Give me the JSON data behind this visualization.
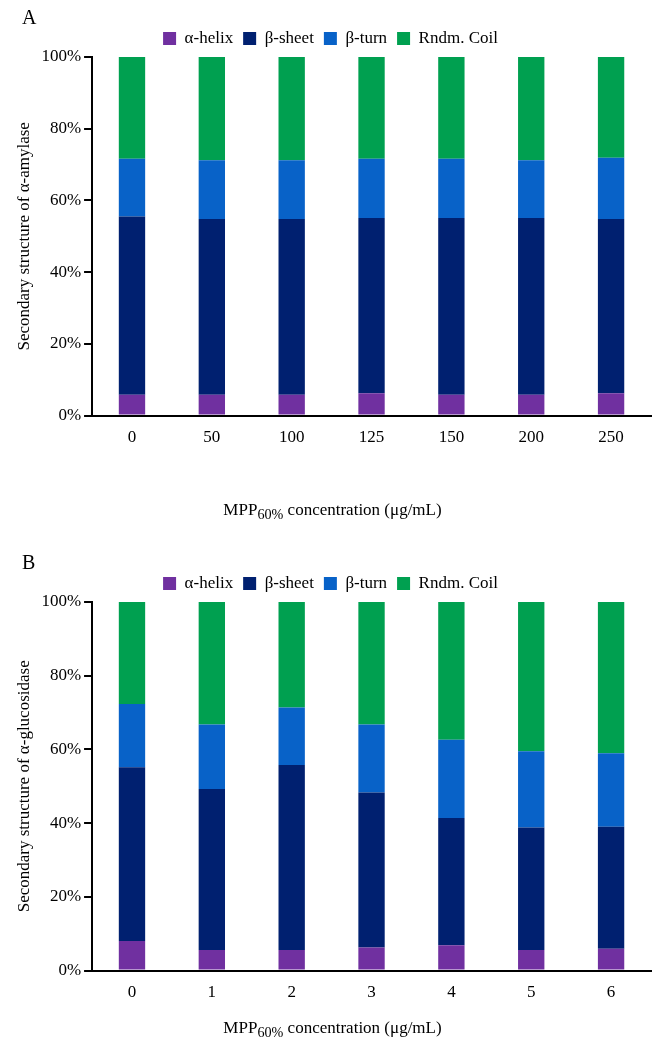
{
  "chart_data": [
    {
      "type": "bar",
      "title": "A",
      "xlabel": "MPP$_{60%}$ concentration (μg/mL)",
      "ylabel": "Secondary structure of α-amylase",
      "categories": [
        "0",
        "50",
        "100",
        "125",
        "150",
        "200",
        "250"
      ],
      "stacked": true,
      "legend": "top",
      "ylim": [
        0,
        100
      ],
      "yticks": [
        {
          "value": 0,
          "label": "0%"
        },
        {
          "value": 20,
          "label": "20%"
        },
        {
          "value": 40,
          "label": "40%"
        },
        {
          "value": 60,
          "label": "60%"
        },
        {
          "value": 80,
          "label": "80%"
        },
        {
          "value": 100,
          "label": "100%"
        }
      ],
      "grid": false,
      "series": [
        {
          "name": "α-helix",
          "color": "#7030a0",
          "values": [
            5.8,
            5.8,
            5.8,
            6.2,
            5.8,
            5.8,
            6.2
          ]
        },
        {
          "name": "β-sheet",
          "color": "#002070",
          "values": [
            49.7,
            49.0,
            49.0,
            48.9,
            49.3,
            49.3,
            48.6
          ]
        },
        {
          "name": "β-turn",
          "color": "#0862c8",
          "values": [
            16.1,
            16.4,
            16.4,
            16.5,
            16.5,
            16.1,
            17.1
          ]
        },
        {
          "name": "Rndm. Coil",
          "color": "#00a050",
          "values": [
            28.4,
            28.8,
            28.8,
            28.4,
            28.4,
            28.8,
            28.1
          ]
        }
      ]
    },
    {
      "type": "bar",
      "title": "B",
      "xlabel": "MPP$_{60%}$ concentration (μg/mL)",
      "ylabel": "Secondary structure of α-glucosidase",
      "categories": [
        "0",
        "1",
        "2",
        "3",
        "4",
        "5",
        "6"
      ],
      "stacked": true,
      "legend": "top",
      "ylim": [
        0,
        100
      ],
      "yticks": [
        {
          "value": 0,
          "label": "0%"
        },
        {
          "value": 20,
          "label": "20%"
        },
        {
          "value": 40,
          "label": "40%"
        },
        {
          "value": 60,
          "label": "60%"
        },
        {
          "value": 80,
          "label": "80%"
        },
        {
          "value": 100,
          "label": "100%"
        }
      ],
      "grid": false,
      "series": [
        {
          "name": "α-helix",
          "color": "#7030a0",
          "values": [
            8.0,
            5.6,
            5.6,
            6.3,
            6.9,
            5.6,
            5.9
          ]
        },
        {
          "name": "β-sheet",
          "color": "#002070",
          "values": [
            47.2,
            43.7,
            50.2,
            42.0,
            34.5,
            33.2,
            33.1
          ]
        },
        {
          "name": "β-turn",
          "color": "#0862c8",
          "values": [
            17.1,
            17.5,
            15.6,
            18.5,
            21.2,
            20.7,
            20.0
          ]
        },
        {
          "name": "Rndm. Coil",
          "color": "#00a050",
          "values": [
            27.7,
            33.2,
            28.6,
            33.2,
            37.4,
            40.5,
            41.0
          ]
        }
      ]
    }
  ]
}
